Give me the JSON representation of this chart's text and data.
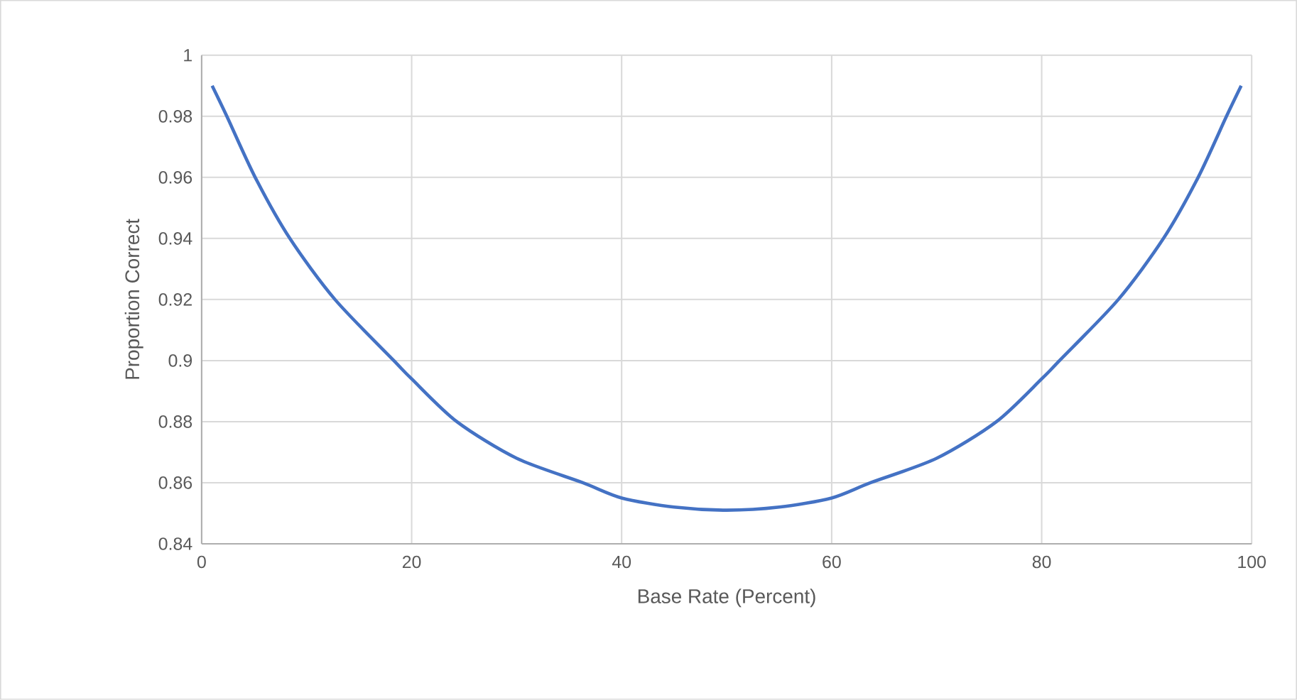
{
  "chart_data": {
    "type": "line",
    "xlabel": "Base Rate (Percent)",
    "ylabel": "Proportion Correct",
    "x": [
      1,
      2.4,
      5.1,
      8.4,
      12.7,
      18.3,
      20,
      24.3,
      30,
      36.3,
      40,
      45,
      50,
      55,
      60,
      63.7,
      70,
      75.7,
      80,
      81.7,
      87.3,
      91.6,
      94.9,
      97.6,
      99
    ],
    "series": [
      {
        "color": "#4472c4",
        "values": [
          0.99,
          0.98,
          0.96,
          0.94,
          0.92,
          0.9,
          0.894,
          0.88,
          0.868,
          0.86,
          0.855,
          0.852,
          0.851,
          0.852,
          0.855,
          0.86,
          0.868,
          0.88,
          0.894,
          0.9,
          0.92,
          0.94,
          0.96,
          0.98,
          0.99
        ]
      }
    ],
    "xlim": [
      0,
      100
    ],
    "ylim": [
      0.84,
      1
    ],
    "xticks": [
      0,
      20,
      40,
      60,
      80,
      100
    ],
    "yticks": [
      0.84,
      0.86,
      0.88,
      0.9,
      0.92,
      0.94,
      0.96,
      0.98,
      1
    ],
    "grid": true,
    "marker": "none",
    "line_style": "solid"
  }
}
